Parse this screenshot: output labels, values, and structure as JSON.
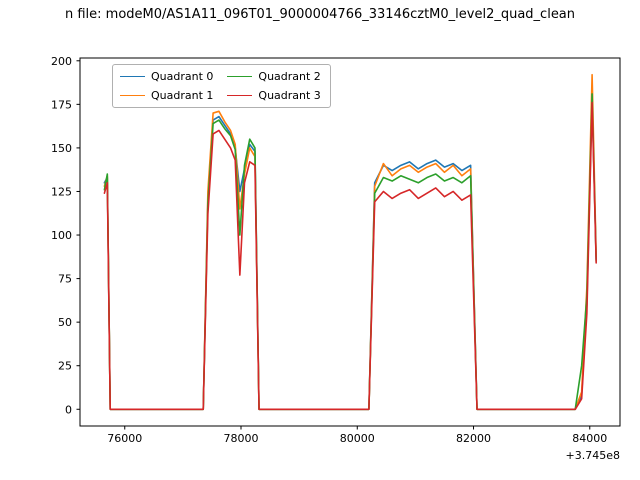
{
  "figure": {
    "title": "n file: modeM0/AS1A11_096T01_9000004766_33146cztM0_level2_quad_clean",
    "background": "#ffffff",
    "text_color": "#000000"
  },
  "chart_data": {
    "type": "line",
    "title": "n file: modeM0/AS1A11_096T01_9000004766_33146cztM0_level2_quad_clean",
    "xlabel": "",
    "ylabel": "",
    "x_axis_offset_label": "+3.745e8",
    "xlim": [
      75230,
      84520
    ],
    "ylim": [
      -9.6,
      201.6
    ],
    "x_ticks": [
      76000,
      78000,
      80000,
      82000,
      84000
    ],
    "y_ticks": [
      0,
      25,
      50,
      75,
      100,
      125,
      150,
      175,
      200
    ],
    "grid": false,
    "legend_position": "upper left",
    "legend_ncol": 2,
    "x": [
      75650,
      75700,
      75750,
      77350,
      77430,
      77520,
      77620,
      77720,
      77820,
      77900,
      77980,
      78060,
      78150,
      78240,
      78310,
      80200,
      80300,
      80450,
      80600,
      80750,
      80900,
      81050,
      81200,
      81350,
      81500,
      81650,
      81800,
      81950,
      82060,
      83750,
      83860,
      83950,
      84040,
      84110
    ],
    "series": [
      {
        "name": "Quadrant 0",
        "color": "#1f77b4",
        "values": [
          130,
          133,
          0,
          0,
          120,
          166,
          168,
          163,
          158,
          150,
          125,
          138,
          152,
          148,
          0,
          0,
          130,
          140,
          137,
          140,
          142,
          138,
          141,
          143,
          139,
          141,
          137,
          140,
          0,
          0,
          8,
          60,
          180,
          86
        ]
      },
      {
        "name": "Quadrant 1",
        "color": "#ff7f0e",
        "values": [
          128,
          134,
          0,
          0,
          125,
          170,
          171,
          165,
          160,
          152,
          115,
          135,
          150,
          145,
          0,
          0,
          128,
          141,
          134,
          138,
          140,
          136,
          139,
          141,
          136,
          140,
          134,
          138,
          0,
          0,
          10,
          70,
          192,
          88
        ]
      },
      {
        "name": "Quadrant 2",
        "color": "#2ca02c",
        "values": [
          126,
          135,
          0,
          0,
          118,
          164,
          166,
          161,
          157,
          149,
          100,
          140,
          155,
          150,
          0,
          0,
          124,
          133,
          131,
          134,
          132,
          130,
          133,
          135,
          131,
          133,
          130,
          134,
          0,
          0,
          25,
          65,
          181,
          85
        ]
      },
      {
        "name": "Quadrant 3",
        "color": "#d62728",
        "values": [
          124,
          130,
          0,
          0,
          112,
          158,
          160,
          155,
          150,
          143,
          77,
          130,
          142,
          140,
          0,
          0,
          119,
          125,
          121,
          124,
          126,
          121,
          124,
          127,
          122,
          125,
          120,
          123,
          0,
          0,
          6,
          55,
          176,
          84
        ]
      }
    ]
  }
}
